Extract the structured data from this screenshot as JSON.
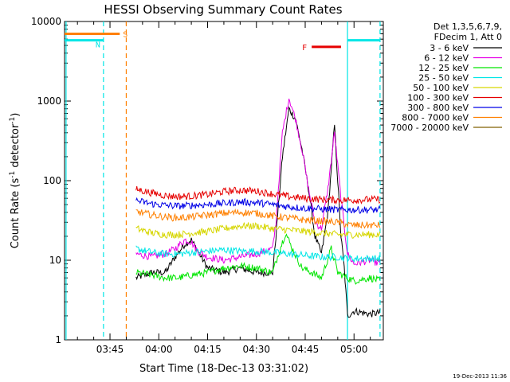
{
  "chart_data": {
    "type": "line",
    "title": "HESSI Observing Summary Count Rates",
    "xlabel": "Start Time (18-Dec-13 03:31:02)",
    "ylabel_main": "Count Rate (s",
    "ylabel_sup1": "-1",
    "ylabel_mid": " detector",
    "ylabel_sup2": "-1",
    "ylabel_end": ")",
    "y_scale": "log",
    "ylim": [
      1,
      10000
    ],
    "xlim": [
      "03:31:02",
      "05:09:00"
    ],
    "yticks": [
      {
        "value": 1,
        "label": "1"
      },
      {
        "value": 10,
        "label": "10"
      },
      {
        "value": 100,
        "label": "100"
      },
      {
        "value": 1000,
        "label": "1000"
      },
      {
        "value": 10000,
        "label": "10000"
      }
    ],
    "xticks": [
      {
        "time": "03:45",
        "label": "03:45"
      },
      {
        "time": "04:00",
        "label": "04:00"
      },
      {
        "time": "04:15",
        "label": "04:15"
      },
      {
        "time": "04:30",
        "label": "04:30"
      },
      {
        "time": "04:45",
        "label": "04:45"
      },
      {
        "time": "05:00",
        "label": "05:00"
      }
    ],
    "legend": {
      "placement": "right",
      "header1": "Det 1,3,5,6,7,9,",
      "header2": "FDecim 1, Att 0",
      "entries": [
        {
          "label": "3 - 6 keV",
          "color": "#000000"
        },
        {
          "label": "6 - 12 keV",
          "color": "#e600e6"
        },
        {
          "label": "12 - 25 keV",
          "color": "#00e600"
        },
        {
          "label": "25 - 50 keV",
          "color": "#00e6e6"
        },
        {
          "label": "50 - 100 keV",
          "color": "#d6d600"
        },
        {
          "label": "100 - 300 keV",
          "color": "#e60000"
        },
        {
          "label": "300 - 800 keV",
          "color": "#0000e6"
        },
        {
          "label": "800 - 7000 keV",
          "color": "#ff8000"
        },
        {
          "label": "7000 - 20000 keV",
          "color": "#806000"
        }
      ]
    },
    "series": [
      {
        "name": "3 - 6 keV",
        "color": "#000000",
        "x": [
          "03:53",
          "03:58",
          "04:02",
          "04:05",
          "04:08",
          "04:10",
          "04:12",
          "04:15",
          "04:20",
          "04:25",
          "04:30",
          "04:35",
          "04:36",
          "04:38",
          "04:40",
          "04:42",
          "04:44",
          "04:46",
          "04:48",
          "04:50",
          "04:52",
          "04:54",
          "04:56",
          "04:57",
          "04:58",
          "05:00",
          "05:05",
          "05:08"
        ],
        "y": [
          6,
          7,
          7,
          11,
          16,
          18,
          13,
          8,
          7,
          8,
          7,
          7,
          20,
          200,
          800,
          600,
          250,
          80,
          20,
          12,
          40,
          500,
          20,
          8,
          2,
          2.3,
          2.1,
          2.2
        ]
      },
      {
        "name": "6 - 12 keV",
        "color": "#e600e6",
        "x": [
          "03:53",
          "03:58",
          "04:02",
          "04:05",
          "04:08",
          "04:10",
          "04:12",
          "04:15",
          "04:20",
          "04:25",
          "04:30",
          "04:35",
          "04:36",
          "04:38",
          "04:40",
          "04:42",
          "04:44",
          "04:46",
          "04:48",
          "04:50",
          "04:52",
          "04:54",
          "04:56",
          "04:58",
          "05:00",
          "05:05",
          "05:08"
        ],
        "y": [
          12,
          11,
          12,
          14,
          18,
          17,
          13,
          11,
          10,
          11,
          12,
          14,
          30,
          400,
          1100,
          600,
          250,
          80,
          30,
          25,
          80,
          400,
          60,
          12,
          9,
          10,
          9
        ]
      },
      {
        "name": "12 - 25 keV",
        "color": "#00e600",
        "x": [
          "03:53",
          "03:58",
          "04:02",
          "04:06",
          "04:10",
          "04:15",
          "04:20",
          "04:25",
          "04:30",
          "04:35",
          "04:37",
          "04:39",
          "04:41",
          "04:44",
          "04:47",
          "04:50",
          "04:53",
          "04:55",
          "04:58",
          "05:00",
          "05:05",
          "05:08"
        ],
        "y": [
          7,
          6.5,
          6,
          6,
          6.5,
          7,
          8,
          8.5,
          8,
          7,
          13,
          22,
          14,
          8,
          7,
          6,
          14,
          7,
          6,
          5.5,
          6,
          5.5
        ]
      },
      {
        "name": "25 - 50 keV",
        "color": "#00e6e6",
        "x": [
          "03:53",
          "03:58",
          "04:02",
          "04:06",
          "04:10",
          "04:15",
          "04:20",
          "04:25",
          "04:30",
          "04:35",
          "04:40",
          "04:45",
          "04:50",
          "04:55",
          "04:58",
          "05:00",
          "05:05",
          "05:08"
        ],
        "y": [
          14,
          12.5,
          12,
          12,
          12.5,
          13,
          13.5,
          13,
          13,
          12.5,
          12,
          11.5,
          11,
          11,
          10.5,
          10.5,
          10.5,
          10.5
        ]
      },
      {
        "name": "50 - 100 keV",
        "color": "#d6d600",
        "x": [
          "03:53",
          "03:58",
          "04:02",
          "04:06",
          "04:10",
          "04:15",
          "04:20",
          "04:25",
          "04:30",
          "04:35",
          "04:40",
          "04:45",
          "04:50",
          "04:55",
          "04:58",
          "05:00",
          "05:05",
          "05:08"
        ],
        "y": [
          25,
          22,
          21,
          21,
          22,
          23,
          25,
          27,
          27,
          25,
          24,
          23,
          22,
          21,
          21,
          21,
          21,
          21
        ]
      },
      {
        "name": "100 - 300 keV",
        "color": "#e60000",
        "x": [
          "03:53",
          "03:58",
          "04:02",
          "04:06",
          "04:10",
          "04:15",
          "04:20",
          "04:25",
          "04:30",
          "04:35",
          "04:40",
          "04:45",
          "04:50",
          "04:55",
          "04:58",
          "05:00",
          "05:05",
          "05:08"
        ],
        "y": [
          78,
          70,
          65,
          63,
          64,
          67,
          73,
          76,
          74,
          68,
          63,
          60,
          58,
          57,
          57,
          57,
          58,
          58
        ]
      },
      {
        "name": "300 - 800 keV",
        "color": "#0000e6",
        "x": [
          "03:53",
          "03:58",
          "04:02",
          "04:06",
          "04:10",
          "04:15",
          "04:20",
          "04:25",
          "04:30",
          "04:35",
          "04:40",
          "04:45",
          "04:50",
          "04:55",
          "04:58",
          "05:00",
          "05:05",
          "05:08"
        ],
        "y": [
          56,
          51,
          49,
          48,
          49,
          50,
          52,
          54,
          53,
          50,
          47,
          45,
          44,
          43,
          43,
          43,
          43,
          43
        ]
      },
      {
        "name": "800 - 7000 keV",
        "color": "#ff8000",
        "x": [
          "03:53",
          "03:58",
          "04:02",
          "04:06",
          "04:10",
          "04:15",
          "04:20",
          "04:25",
          "04:30",
          "04:35",
          "04:40",
          "04:45",
          "04:50",
          "04:55",
          "04:58",
          "05:00",
          "05:05",
          "05:08"
        ],
        "y": [
          41,
          37,
          35,
          34,
          35,
          37,
          39,
          40,
          39,
          36,
          34,
          32,
          31,
          30,
          28,
          27.5,
          27.5,
          27.5
        ]
      }
    ],
    "annotations": {
      "S_label": "S",
      "N_label": "N",
      "F_label": "F",
      "saa_bar": {
        "x": [
          "03:31:02",
          "03:48"
        ],
        "y": 7000,
        "color": "#ff8000"
      },
      "night_bars": [
        {
          "x": [
            "03:31:02",
            "03:43"
          ],
          "y": 5800,
          "color": "#00e6e6"
        },
        {
          "x": [
            "04:58",
            "05:08"
          ],
          "y": 5800,
          "color": "#00e6e6"
        }
      ],
      "flare_bar": {
        "x": [
          "04:47",
          "04:56"
        ],
        "y": 4800,
        "color": "#e60000"
      },
      "vertical_lines": [
        {
          "time": "03:31:30",
          "color": "#00e6e6",
          "style": "solid"
        },
        {
          "time": "03:43",
          "color": "#00e6e6",
          "style": "dashed"
        },
        {
          "time": "03:50",
          "color": "#ff8000",
          "style": "dashed"
        },
        {
          "time": "04:58",
          "color": "#00e6e6",
          "style": "solid"
        },
        {
          "time": "05:08",
          "color": "#00e6e6",
          "style": "dashed"
        }
      ]
    }
  },
  "footer": {
    "timestamp": "19-Dec-2013 11:36"
  }
}
